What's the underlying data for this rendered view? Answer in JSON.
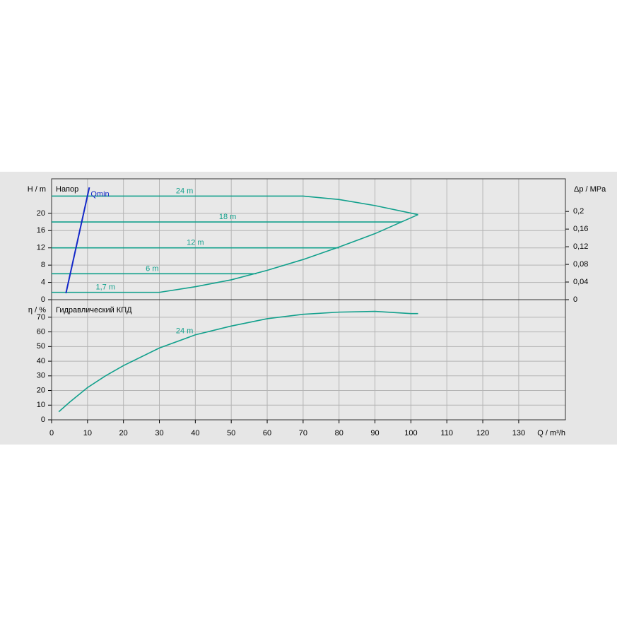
{
  "chart_data": [
    {
      "type": "line",
      "title": "Напор",
      "ylabel": "H / m",
      "y2label": "Δp / MPa",
      "xlim": [
        0,
        143
      ],
      "ylim": [
        0,
        28
      ],
      "yticks": [
        0,
        4,
        8,
        12,
        16,
        20
      ],
      "y2lim": [
        0,
        0.274
      ],
      "y2ticks": [
        0,
        {
          "value": 0.04,
          "label": "0,04"
        },
        {
          "value": 0.08,
          "label": "0,08"
        },
        {
          "value": 0.12,
          "label": "0,12"
        },
        {
          "value": 0.16,
          "label": "0,16"
        },
        {
          "value": 0.2,
          "label": "0,2"
        }
      ],
      "grid": true,
      "series": [
        {
          "name": "24 m",
          "color": "#12a08c",
          "x": [
            0,
            70,
            80,
            90,
            102
          ],
          "values": [
            24,
            24,
            23.2,
            21.8,
            19.7
          ]
        },
        {
          "name": "18 m",
          "color": "#12a08c",
          "x": [
            0,
            97.5
          ],
          "values": [
            18,
            18
          ]
        },
        {
          "name": "12 m",
          "color": "#12a08c",
          "x": [
            0,
            80
          ],
          "values": [
            12,
            12
          ]
        },
        {
          "name": "6 m",
          "color": "#12a08c",
          "x": [
            0,
            57
          ],
          "values": [
            6,
            6
          ]
        },
        {
          "name": "1,7 m",
          "color": "#12a08c",
          "x": [
            0,
            30,
            40,
            50,
            60,
            70,
            80,
            90,
            102
          ],
          "values": [
            1.7,
            1.7,
            3,
            4.6,
            6.8,
            9.3,
            12.2,
            15.3,
            19.7
          ]
        },
        {
          "name": "Qmin",
          "color": "#1428c8",
          "x": [
            4,
            10.5
          ],
          "values": [
            1.5,
            26
          ]
        }
      ]
    },
    {
      "type": "line",
      "title": "Гидравлический КПД",
      "ylabel": "η / %",
      "xlabel": "Q / m³/h",
      "xlim": [
        0,
        143
      ],
      "xticks": [
        0,
        10,
        20,
        30,
        40,
        50,
        60,
        70,
        80,
        90,
        100,
        110,
        120,
        130
      ],
      "ylim": [
        0,
        82
      ],
      "yticks": [
        0,
        10,
        20,
        30,
        40,
        50,
        60,
        70
      ],
      "grid": true,
      "series": [
        {
          "name": "24 m",
          "color": "#12a08c",
          "x": [
            2,
            5,
            10,
            15,
            20,
            30,
            40,
            50,
            60,
            70,
            80,
            90,
            100,
            102
          ],
          "values": [
            5.5,
            12,
            22,
            30,
            37,
            49,
            58,
            64,
            69,
            72,
            73.5,
            74,
            72.5,
            72.5
          ]
        }
      ]
    }
  ]
}
